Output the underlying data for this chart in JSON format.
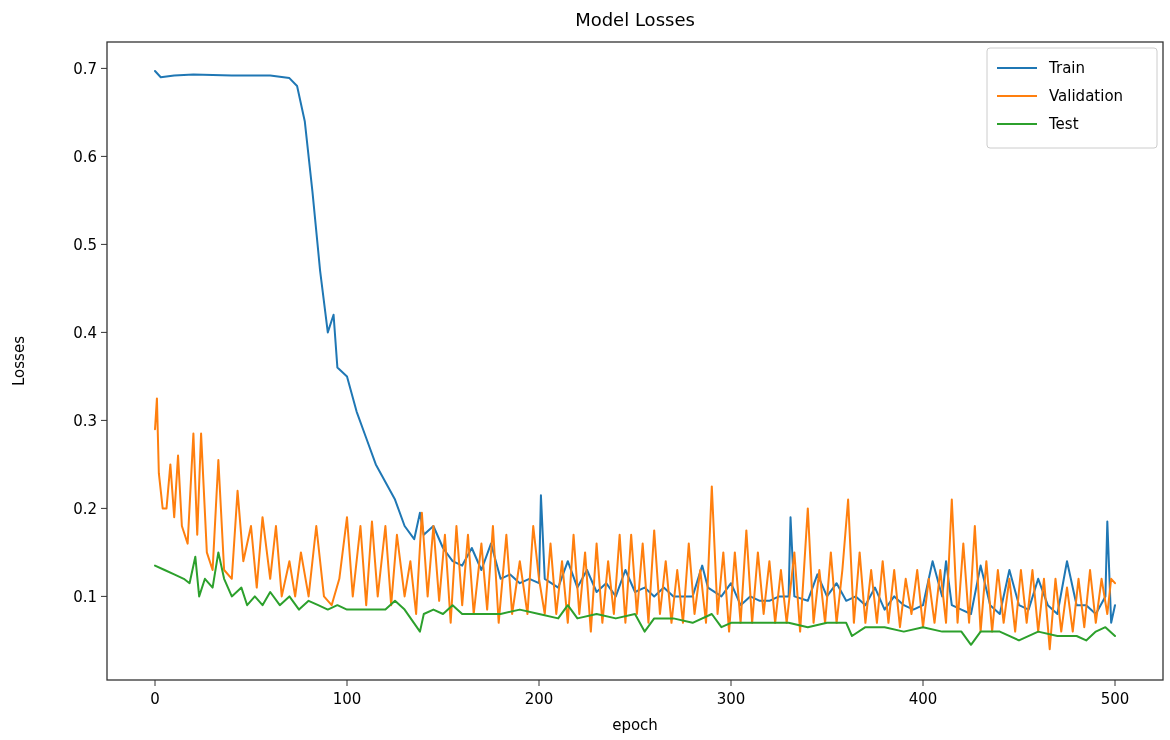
{
  "chart_data": {
    "type": "line",
    "title": "Model Losses",
    "xlabel": "epoch",
    "ylabel": "Losses",
    "xlim": [
      -25,
      525
    ],
    "ylim": [
      0.005,
      0.73
    ],
    "xticks": [
      0,
      100,
      200,
      300,
      400,
      500
    ],
    "yticks": [
      0.1,
      0.2,
      0.3,
      0.4,
      0.5,
      0.6,
      0.7
    ],
    "legend": "top right",
    "grid": false,
    "series": [
      {
        "name": "Train",
        "color": "#1f77b4",
        "x": [
          0,
          3,
          10,
          20,
          40,
          60,
          70,
          74,
          78,
          82,
          86,
          90,
          93,
          95,
          100,
          105,
          110,
          115,
          120,
          125,
          130,
          135,
          138,
          140,
          145,
          150,
          155,
          160,
          165,
          170,
          175,
          180,
          185,
          190,
          195,
          200,
          201,
          203,
          210,
          215,
          220,
          225,
          230,
          235,
          240,
          245,
          250,
          255,
          260,
          265,
          270,
          275,
          280,
          285,
          288,
          295,
          300,
          305,
          310,
          315,
          320,
          325,
          330,
          331,
          333,
          340,
          345,
          350,
          355,
          360,
          365,
          370,
          375,
          380,
          385,
          390,
          395,
          400,
          405,
          410,
          412,
          415,
          420,
          425,
          430,
          435,
          440,
          445,
          450,
          455,
          460,
          465,
          470,
          475,
          480,
          485,
          490,
          495,
          496,
          498,
          500
        ],
        "values": [
          0.697,
          0.69,
          0.692,
          0.693,
          0.692,
          0.692,
          0.689,
          0.68,
          0.64,
          0.56,
          0.47,
          0.4,
          0.42,
          0.36,
          0.35,
          0.31,
          0.28,
          0.25,
          0.23,
          0.21,
          0.18,
          0.165,
          0.195,
          0.17,
          0.18,
          0.155,
          0.14,
          0.135,
          0.155,
          0.13,
          0.16,
          0.12,
          0.125,
          0.115,
          0.12,
          0.115,
          0.215,
          0.12,
          0.11,
          0.14,
          0.11,
          0.13,
          0.105,
          0.115,
          0.1,
          0.13,
          0.105,
          0.11,
          0.1,
          0.11,
          0.1,
          0.1,
          0.1,
          0.135,
          0.11,
          0.1,
          0.115,
          0.09,
          0.1,
          0.095,
          0.095,
          0.1,
          0.1,
          0.19,
          0.1,
          0.095,
          0.125,
          0.1,
          0.115,
          0.095,
          0.1,
          0.09,
          0.11,
          0.085,
          0.1,
          0.09,
          0.085,
          0.09,
          0.14,
          0.1,
          0.14,
          0.09,
          0.085,
          0.08,
          0.135,
          0.09,
          0.08,
          0.13,
          0.09,
          0.085,
          0.12,
          0.09,
          0.08,
          0.14,
          0.09,
          0.09,
          0.08,
          0.1,
          0.185,
          0.07,
          0.09
        ]
      },
      {
        "name": "Validation",
        "color": "#ff7f0e",
        "x": [
          0,
          1,
          2,
          4,
          6,
          8,
          10,
          12,
          14,
          17,
          20,
          22,
          24,
          27,
          30,
          33,
          36,
          40,
          43,
          46,
          50,
          53,
          56,
          60,
          63,
          66,
          70,
          73,
          76,
          80,
          84,
          88,
          92,
          96,
          100,
          103,
          107,
          110,
          113,
          116,
          120,
          123,
          126,
          130,
          133,
          136,
          139,
          142,
          145,
          148,
          151,
          154,
          157,
          160,
          163,
          166,
          170,
          173,
          176,
          179,
          183,
          186,
          190,
          194,
          197,
          200,
          203,
          206,
          209,
          212,
          215,
          218,
          221,
          224,
          227,
          230,
          233,
          236,
          239,
          242,
          245,
          248,
          251,
          254,
          257,
          260,
          263,
          266,
          269,
          272,
          275,
          278,
          281,
          284,
          287,
          290,
          293,
          296,
          299,
          302,
          305,
          308,
          311,
          314,
          317,
          320,
          323,
          326,
          329,
          333,
          336,
          340,
          343,
          346,
          349,
          352,
          355,
          358,
          361,
          364,
          367,
          370,
          373,
          376,
          379,
          382,
          385,
          388,
          391,
          394,
          397,
          400,
          403,
          406,
          409,
          412,
          415,
          418,
          421,
          424,
          427,
          430,
          433,
          436,
          439,
          442,
          445,
          448,
          451,
          454,
          457,
          460,
          463,
          466,
          469,
          472,
          475,
          478,
          481,
          484,
          487,
          490,
          493,
          496,
          498,
          500
        ],
        "values": [
          0.29,
          0.325,
          0.24,
          0.2,
          0.2,
          0.25,
          0.19,
          0.26,
          0.18,
          0.16,
          0.285,
          0.17,
          0.285,
          0.15,
          0.13,
          0.255,
          0.13,
          0.12,
          0.22,
          0.14,
          0.18,
          0.11,
          0.19,
          0.12,
          0.18,
          0.1,
          0.14,
          0.1,
          0.15,
          0.1,
          0.18,
          0.1,
          0.09,
          0.12,
          0.19,
          0.1,
          0.18,
          0.09,
          0.185,
          0.1,
          0.18,
          0.09,
          0.17,
          0.1,
          0.14,
          0.08,
          0.195,
          0.1,
          0.18,
          0.095,
          0.17,
          0.07,
          0.18,
          0.09,
          0.17,
          0.08,
          0.16,
          0.085,
          0.18,
          0.07,
          0.17,
          0.08,
          0.14,
          0.08,
          0.18,
          0.12,
          0.08,
          0.16,
          0.08,
          0.14,
          0.07,
          0.17,
          0.08,
          0.15,
          0.06,
          0.16,
          0.07,
          0.14,
          0.08,
          0.17,
          0.07,
          0.17,
          0.08,
          0.16,
          0.07,
          0.175,
          0.08,
          0.14,
          0.07,
          0.13,
          0.07,
          0.16,
          0.08,
          0.13,
          0.07,
          0.225,
          0.08,
          0.15,
          0.06,
          0.15,
          0.07,
          0.175,
          0.07,
          0.15,
          0.08,
          0.14,
          0.07,
          0.13,
          0.07,
          0.15,
          0.06,
          0.2,
          0.07,
          0.13,
          0.07,
          0.15,
          0.07,
          0.13,
          0.21,
          0.07,
          0.15,
          0.07,
          0.13,
          0.07,
          0.14,
          0.07,
          0.13,
          0.065,
          0.12,
          0.08,
          0.13,
          0.065,
          0.12,
          0.07,
          0.13,
          0.07,
          0.21,
          0.07,
          0.16,
          0.07,
          0.18,
          0.06,
          0.14,
          0.06,
          0.13,
          0.07,
          0.12,
          0.06,
          0.13,
          0.07,
          0.13,
          0.06,
          0.12,
          0.04,
          0.12,
          0.06,
          0.11,
          0.06,
          0.12,
          0.065,
          0.13,
          0.07,
          0.12,
          0.08,
          0.12,
          0.115
        ]
      },
      {
        "name": "Test",
        "color": "#2ca02c",
        "x": [
          0,
          5,
          10,
          15,
          18,
          21,
          23,
          26,
          30,
          33,
          36,
          40,
          45,
          48,
          52,
          56,
          60,
          65,
          70,
          75,
          80,
          85,
          90,
          95,
          100,
          110,
          120,
          125,
          130,
          138,
          140,
          145,
          150,
          155,
          160,
          170,
          180,
          190,
          200,
          210,
          215,
          220,
          230,
          240,
          250,
          255,
          260,
          270,
          280,
          290,
          295,
          300,
          310,
          320,
          330,
          340,
          350,
          360,
          363,
          370,
          380,
          390,
          400,
          410,
          420,
          425,
          430,
          440,
          450,
          460,
          470,
          480,
          485,
          490,
          495,
          500
        ],
        "values": [
          0.135,
          0.13,
          0.125,
          0.12,
          0.115,
          0.145,
          0.1,
          0.12,
          0.11,
          0.15,
          0.12,
          0.1,
          0.11,
          0.09,
          0.1,
          0.09,
          0.105,
          0.09,
          0.1,
          0.085,
          0.095,
          0.09,
          0.085,
          0.09,
          0.085,
          0.085,
          0.085,
          0.095,
          0.085,
          0.06,
          0.08,
          0.085,
          0.08,
          0.09,
          0.08,
          0.08,
          0.08,
          0.085,
          0.08,
          0.075,
          0.09,
          0.075,
          0.08,
          0.075,
          0.08,
          0.06,
          0.075,
          0.075,
          0.07,
          0.08,
          0.065,
          0.07,
          0.07,
          0.07,
          0.07,
          0.065,
          0.07,
          0.07,
          0.055,
          0.065,
          0.065,
          0.06,
          0.065,
          0.06,
          0.06,
          0.045,
          0.06,
          0.06,
          0.05,
          0.06,
          0.055,
          0.055,
          0.05,
          0.06,
          0.065,
          0.055
        ]
      }
    ]
  }
}
